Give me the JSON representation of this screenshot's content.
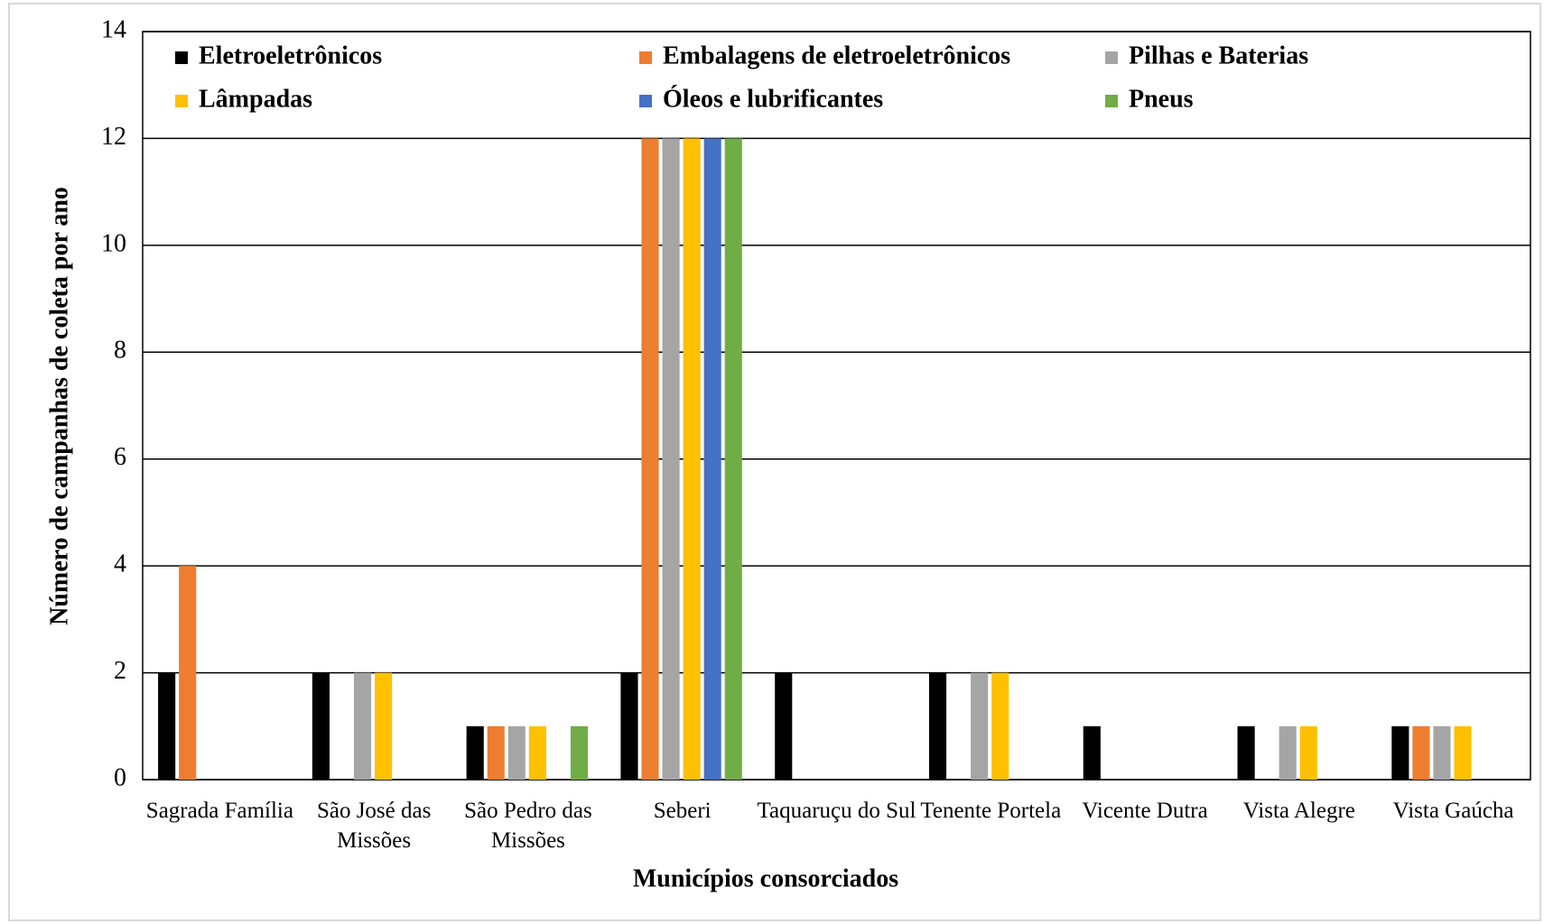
{
  "chart_data": {
    "type": "bar",
    "x_label": "Municípios consorciados",
    "y_label": "Número de campanhas de coleta por ano",
    "categories": [
      "Sagrada Família",
      "São José das Missões",
      "São Pedro das Missões",
      "Seberi",
      "Taquaruçu do Sul",
      "Tenente Portela",
      "Vicente Dutra",
      "Vista Alegre",
      "Vista Gaúcha"
    ],
    "series": [
      {
        "name": "Eletroeletrônicos",
        "color": "#000000",
        "values": [
          2,
          2,
          1,
          2,
          2,
          2,
          1,
          1,
          1
        ]
      },
      {
        "name": "Embalagens de eletroeletrônicos",
        "color": "#ed7d31",
        "values": [
          4,
          0,
          1,
          12,
          0,
          0,
          0,
          0,
          1
        ]
      },
      {
        "name": "Pilhas e Baterias",
        "color": "#a5a5a5",
        "values": [
          0,
          2,
          1,
          12,
          0,
          2,
          0,
          1,
          1
        ]
      },
      {
        "name": "Lâmpadas",
        "color": "#ffc000",
        "values": [
          0,
          2,
          1,
          12,
          0,
          2,
          0,
          1,
          1
        ]
      },
      {
        "name": "Óleos e lubrificantes",
        "color": "#4472c4",
        "values": [
          0,
          0,
          0,
          12,
          0,
          0,
          0,
          0,
          0
        ]
      },
      {
        "name": "Pneus",
        "color": "#70ad47",
        "values": [
          0,
          0,
          1,
          12,
          0,
          0,
          0,
          0,
          0
        ]
      }
    ],
    "ylim": [
      0,
      14
    ],
    "yticks": [
      0,
      2,
      4,
      6,
      8,
      10,
      12,
      14
    ],
    "grid": true,
    "legend": "top"
  }
}
